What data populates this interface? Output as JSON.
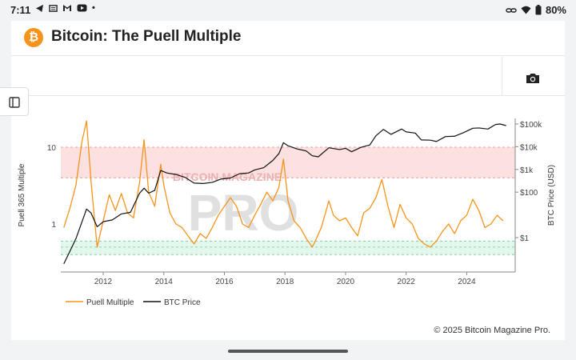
{
  "status_bar": {
    "time": "7:11",
    "left_icons": [
      "telegram-icon",
      "news-icon",
      "gmail-icon",
      "youtube-icon",
      "dot-icon"
    ],
    "battery": "80%"
  },
  "header": {
    "logo_glyph": "₿",
    "title": "Bitcoin: The Puell Multiple"
  },
  "footer": {
    "copyright": "© 2025 Bitcoin Magazine Pro."
  },
  "watermark": {
    "top": "BITCOIN MAGAZINE",
    "bottom": "PRO"
  },
  "chart_data": {
    "type": "line",
    "ylabel_left": "Puell 365 Multiple",
    "ylabel_right": "BTC Price (USD)",
    "left_axis": {
      "scale": "log",
      "ticks": [
        {
          "value": 10,
          "label": "10"
        },
        {
          "value": 1,
          "label": "1"
        }
      ]
    },
    "right_axis": {
      "scale": "log",
      "ticks": [
        {
          "value": 100000,
          "label": "$100k"
        },
        {
          "value": 10000,
          "label": "$10k"
        },
        {
          "value": 1000,
          "label": "$1k"
        },
        {
          "value": 100,
          "label": "$100"
        },
        {
          "value": 1,
          "label": "$1"
        }
      ]
    },
    "x_ticks": [
      "2012",
      "2014",
      "2016",
      "2018",
      "2020",
      "2022",
      "2024"
    ],
    "x_range": [
      2010.6,
      2025.6
    ],
    "bands": [
      {
        "name": "high",
        "from": 4,
        "to": 10,
        "color": "#fde0e0"
      },
      {
        "name": "low",
        "from": 0.4,
        "to": 0.6,
        "color": "#e3f7ec"
      }
    ],
    "legend": {
      "position": "bottom-left",
      "items": [
        "Puell Multiple",
        "BTC Price"
      ]
    },
    "series": [
      {
        "name": "Puell Multiple",
        "color": "#f7931a",
        "x": [
          2010.7,
          2010.9,
          2011.1,
          2011.3,
          2011.45,
          2011.6,
          2011.8,
          2012.0,
          2012.2,
          2012.4,
          2012.6,
          2012.8,
          2013.0,
          2013.2,
          2013.35,
          2013.5,
          2013.7,
          2013.9,
          2014.0,
          2014.2,
          2014.4,
          2014.6,
          2014.8,
          2015.0,
          2015.2,
          2015.4,
          2015.6,
          2015.8,
          2016.0,
          2016.2,
          2016.4,
          2016.6,
          2016.8,
          2017.0,
          2017.2,
          2017.4,
          2017.6,
          2017.8,
          2017.95,
          2018.1,
          2018.3,
          2018.5,
          2018.7,
          2018.9,
          2019.0,
          2019.2,
          2019.45,
          2019.6,
          2019.8,
          2020.0,
          2020.2,
          2020.4,
          2020.6,
          2020.8,
          2021.0,
          2021.2,
          2021.4,
          2021.6,
          2021.8,
          2022.0,
          2022.2,
          2022.4,
          2022.6,
          2022.8,
          2023.0,
          2023.2,
          2023.4,
          2023.6,
          2023.8,
          2024.0,
          2024.2,
          2024.4,
          2024.6,
          2024.8,
          2025.0,
          2025.2
        ],
        "values": [
          0.9,
          1.6,
          3.2,
          12.0,
          22.0,
          3.5,
          0.5,
          1.1,
          2.4,
          1.5,
          2.5,
          1.4,
          1.2,
          3.5,
          12.5,
          2.6,
          1.7,
          6.0,
          3.2,
          1.4,
          1.0,
          0.9,
          0.7,
          0.55,
          0.75,
          0.65,
          0.9,
          1.3,
          1.7,
          2.2,
          1.7,
          1.0,
          0.9,
          1.3,
          1.8,
          2.6,
          2.0,
          3.0,
          7.0,
          2.0,
          1.1,
          0.9,
          0.65,
          0.5,
          0.6,
          0.9,
          2.0,
          1.3,
          1.1,
          1.2,
          0.9,
          0.7,
          1.4,
          1.6,
          2.2,
          3.8,
          1.7,
          0.9,
          1.8,
          1.2,
          1.0,
          0.65,
          0.55,
          0.5,
          0.6,
          0.8,
          1.0,
          0.75,
          1.1,
          1.3,
          2.1,
          1.5,
          0.9,
          1.0,
          1.3,
          1.1
        ]
      },
      {
        "name": "BTC Price",
        "color": "#111111",
        "x": [
          2010.7,
          2010.9,
          2011.1,
          2011.3,
          2011.45,
          2011.6,
          2011.8,
          2012.0,
          2012.3,
          2012.6,
          2012.9,
          2013.2,
          2013.35,
          2013.5,
          2013.7,
          2013.9,
          2014.1,
          2014.4,
          2014.7,
          2015.0,
          2015.3,
          2015.6,
          2015.9,
          2016.2,
          2016.5,
          2016.8,
          2017.0,
          2017.3,
          2017.6,
          2017.8,
          2017.95,
          2018.1,
          2018.4,
          2018.7,
          2018.9,
          2019.1,
          2019.45,
          2019.8,
          2020.0,
          2020.2,
          2020.5,
          2020.8,
          2021.0,
          2021.25,
          2021.5,
          2021.85,
          2022.0,
          2022.3,
          2022.5,
          2022.8,
          2023.0,
          2023.3,
          2023.6,
          2023.9,
          2024.2,
          2024.4,
          2024.7,
          2024.95,
          2025.1,
          2025.3
        ],
        "values": [
          0.07,
          0.25,
          0.9,
          5,
          18,
          12,
          3,
          5,
          6,
          11,
          13,
          90,
          150,
          90,
          120,
          900,
          700,
          600,
          450,
          250,
          240,
          270,
          380,
          420,
          650,
          700,
          950,
          1200,
          2500,
          5000,
          15000,
          11000,
          8000,
          6500,
          4000,
          3600,
          9000,
          7500,
          8500,
          6000,
          9300,
          12000,
          30000,
          58000,
          35000,
          60000,
          45000,
          40000,
          20000,
          19500,
          17000,
          28000,
          29000,
          42000,
          65000,
          67000,
          60000,
          95000,
          100000,
          85000
        ]
      }
    ]
  }
}
